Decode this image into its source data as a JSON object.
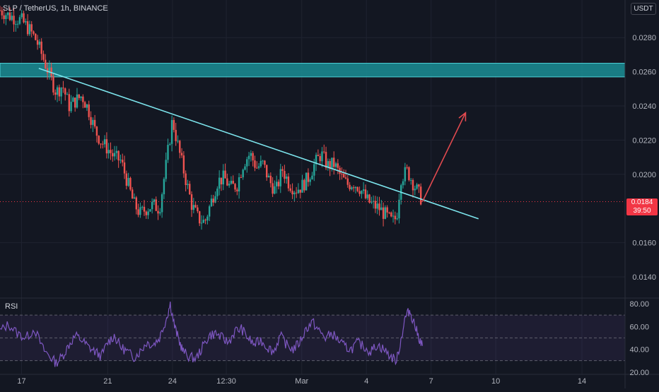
{
  "header": {
    "symbol_line": "SLP / TetherUS, 1h, BINANCE",
    "currency_badge": "USDT"
  },
  "last_price": {
    "value": "0.0184",
    "countdown": "39:50"
  },
  "colors": {
    "background": "#131722",
    "grid": "#1f2330",
    "up_candle": "#26a69a",
    "down_candle": "#ef5350",
    "trendline": "#7de6ee",
    "resistance_zone": "#1b8e95",
    "arrow": "#e14a4f",
    "rsi_line": "#7e57c2",
    "last_price_line": "#f23645"
  },
  "chart_data": [
    {
      "type": "candlestick",
      "panel": "price",
      "interval": "1h",
      "ylim": [
        0.0128,
        0.0302
      ],
      "y_ticks": [
        "0.0280",
        "0.0260",
        "0.0240",
        "0.0220",
        "0.0200",
        "0.0160",
        "0.0140"
      ],
      "x_ticks": [
        "17",
        "21",
        "24",
        "12:30",
        "Mar",
        "4",
        "7",
        "10",
        "14"
      ],
      "x_tick_day_index": [
        0,
        4,
        7,
        9.5,
        13,
        16,
        19,
        22,
        26
      ],
      "x_range_days": [
        -1.0,
        28.0
      ],
      "price_path": [
        [
          -1.0,
          0.0296
        ],
        [
          -0.6,
          0.0293
        ],
        [
          0.0,
          0.029
        ],
        [
          0.4,
          0.0284
        ],
        [
          0.7,
          0.0278
        ],
        [
          1.0,
          0.0268
        ],
        [
          1.3,
          0.0258
        ],
        [
          1.6,
          0.0248
        ],
        [
          1.9,
          0.0252
        ],
        [
          2.2,
          0.024
        ],
        [
          2.5,
          0.0243
        ],
        [
          2.8,
          0.0246
        ],
        [
          3.1,
          0.0238
        ],
        [
          3.4,
          0.0226
        ],
        [
          3.7,
          0.0219
        ],
        [
          4.0,
          0.0215
        ],
        [
          4.3,
          0.021
        ],
        [
          4.6,
          0.0208
        ],
        [
          4.9,
          0.0196
        ],
        [
          5.2,
          0.0183
        ],
        [
          5.5,
          0.0177
        ],
        [
          5.8,
          0.018
        ],
        [
          6.1,
          0.0182
        ],
        [
          6.4,
          0.018
        ],
        [
          6.7,
          0.0205
        ],
        [
          7.0,
          0.0232
        ],
        [
          7.3,
          0.0214
        ],
        [
          7.6,
          0.0198
        ],
        [
          7.9,
          0.0182
        ],
        [
          8.2,
          0.0174
        ],
        [
          8.5,
          0.0172
        ],
        [
          8.8,
          0.0184
        ],
        [
          9.1,
          0.0196
        ],
        [
          9.4,
          0.0198
        ],
        [
          9.7,
          0.0192
        ],
        [
          10.0,
          0.0194
        ],
        [
          10.3,
          0.0207
        ],
        [
          10.6,
          0.0212
        ],
        [
          10.9,
          0.0204
        ],
        [
          11.2,
          0.0206
        ],
        [
          11.5,
          0.0196
        ],
        [
          11.8,
          0.019
        ],
        [
          12.1,
          0.0203
        ],
        [
          12.4,
          0.0195
        ],
        [
          12.7,
          0.0191
        ],
        [
          13.0,
          0.0193
        ],
        [
          13.3,
          0.0198
        ],
        [
          13.6,
          0.0206
        ],
        [
          13.9,
          0.0212
        ],
        [
          14.2,
          0.0205
        ],
        [
          14.5,
          0.0206
        ],
        [
          14.8,
          0.0199
        ],
        [
          15.1,
          0.0194
        ],
        [
          15.4,
          0.0195
        ],
        [
          15.7,
          0.0192
        ],
        [
          16.0,
          0.0185
        ],
        [
          16.3,
          0.0182
        ],
        [
          16.6,
          0.018
        ],
        [
          16.9,
          0.0176
        ],
        [
          17.2,
          0.0172
        ],
        [
          17.4,
          0.0175
        ],
        [
          17.6,
          0.0198
        ],
        [
          17.9,
          0.0202
        ],
        [
          18.2,
          0.0194
        ],
        [
          18.5,
          0.0187
        ],
        [
          18.6,
          0.0184
        ]
      ],
      "resistance_zone": {
        "y_from": 0.0257,
        "y_to": 0.0265
      },
      "trendline": {
        "from": [
          0.8,
          0.0262
        ],
        "to": [
          21.2,
          0.0174
        ]
      },
      "projection_arrow": {
        "from": [
          18.6,
          0.0184
        ],
        "to": [
          20.6,
          0.0236
        ]
      },
      "last_price_line": 0.0184
    },
    {
      "type": "line",
      "panel": "rsi",
      "name": "RSI",
      "ylim": [
        18,
        85
      ],
      "y_ticks": [
        80,
        60,
        40,
        20
      ],
      "band": [
        30,
        70
      ],
      "rsi_path": [
        [
          -1.0,
          56
        ],
        [
          -0.6,
          62
        ],
        [
          -0.2,
          54
        ],
        [
          0.2,
          50
        ],
        [
          0.6,
          58
        ],
        [
          1.0,
          40
        ],
        [
          1.3,
          34
        ],
        [
          1.6,
          28
        ],
        [
          1.9,
          34
        ],
        [
          2.2,
          44
        ],
        [
          2.5,
          52
        ],
        [
          2.8,
          48
        ],
        [
          3.1,
          42
        ],
        [
          3.4,
          38
        ],
        [
          3.7,
          34
        ],
        [
          4.0,
          46
        ],
        [
          4.3,
          52
        ],
        [
          4.6,
          42
        ],
        [
          4.9,
          38
        ],
        [
          5.2,
          33
        ],
        [
          5.5,
          38
        ],
        [
          5.8,
          46
        ],
        [
          6.1,
          44
        ],
        [
          6.4,
          50
        ],
        [
          6.7,
          66
        ],
        [
          6.9,
          80
        ],
        [
          7.1,
          60
        ],
        [
          7.3,
          48
        ],
        [
          7.5,
          38
        ],
        [
          7.8,
          33
        ],
        [
          8.1,
          32
        ],
        [
          8.4,
          42
        ],
        [
          8.7,
          52
        ],
        [
          9.0,
          54
        ],
        [
          9.3,
          50
        ],
        [
          9.6,
          46
        ],
        [
          9.9,
          56
        ],
        [
          10.2,
          58
        ],
        [
          10.5,
          50
        ],
        [
          10.8,
          44
        ],
        [
          11.1,
          48
        ],
        [
          11.4,
          42
        ],
        [
          11.7,
          38
        ],
        [
          12.0,
          52
        ],
        [
          12.3,
          44
        ],
        [
          12.6,
          40
        ],
        [
          12.9,
          46
        ],
        [
          13.2,
          58
        ],
        [
          13.5,
          64
        ],
        [
          13.8,
          56
        ],
        [
          14.1,
          50
        ],
        [
          14.4,
          54
        ],
        [
          14.7,
          48
        ],
        [
          15.0,
          42
        ],
        [
          15.3,
          40
        ],
        [
          15.6,
          46
        ],
        [
          15.9,
          42
        ],
        [
          16.2,
          38
        ],
        [
          16.5,
          44
        ],
        [
          16.8,
          40
        ],
        [
          17.1,
          34
        ],
        [
          17.4,
          30
        ],
        [
          17.6,
          48
        ],
        [
          17.8,
          68
        ],
        [
          18.0,
          74
        ],
        [
          18.2,
          64
        ],
        [
          18.4,
          52
        ],
        [
          18.6,
          43
        ]
      ]
    }
  ]
}
